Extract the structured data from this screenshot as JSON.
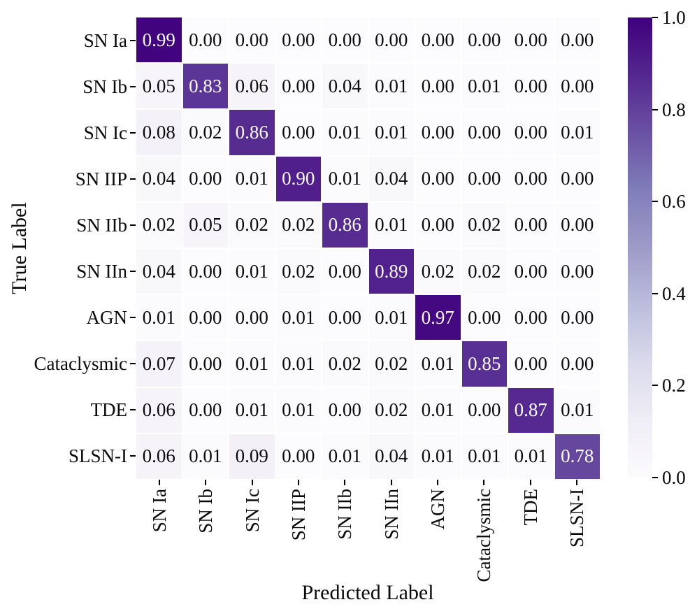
{
  "chart_data": {
    "type": "heatmap",
    "title": "",
    "xlabel": "Predicted Label",
    "ylabel": "True Label",
    "x_categories": [
      "SN Ia",
      "SN Ib",
      "SN Ic",
      "SN IIP",
      "SN IIb",
      "SN IIn",
      "AGN",
      "Cataclysmic",
      "TDE",
      "SLSN-I"
    ],
    "y_categories": [
      "SN Ia",
      "SN Ib",
      "SN Ic",
      "SN IIP",
      "SN IIb",
      "SN IIn",
      "AGN",
      "Cataclysmic",
      "TDE",
      "SLSN-I"
    ],
    "matrix": [
      [
        0.99,
        0.0,
        0.0,
        0.0,
        0.0,
        0.0,
        0.0,
        0.0,
        0.0,
        0.0
      ],
      [
        0.05,
        0.83,
        0.06,
        0.0,
        0.04,
        0.01,
        0.0,
        0.01,
        0.0,
        0.0
      ],
      [
        0.08,
        0.02,
        0.86,
        0.0,
        0.01,
        0.01,
        0.0,
        0.0,
        0.0,
        0.01
      ],
      [
        0.04,
        0.0,
        0.01,
        0.9,
        0.01,
        0.04,
        0.0,
        0.0,
        0.0,
        0.0
      ],
      [
        0.02,
        0.05,
        0.02,
        0.02,
        0.86,
        0.01,
        0.0,
        0.02,
        0.0,
        0.0
      ],
      [
        0.04,
        0.0,
        0.01,
        0.02,
        0.0,
        0.89,
        0.02,
        0.02,
        0.0,
        0.0
      ],
      [
        0.01,
        0.0,
        0.0,
        0.01,
        0.0,
        0.01,
        0.97,
        0.0,
        0.0,
        0.0
      ],
      [
        0.07,
        0.0,
        0.01,
        0.01,
        0.02,
        0.02,
        0.01,
        0.85,
        0.0,
        0.0
      ],
      [
        0.06,
        0.0,
        0.01,
        0.01,
        0.0,
        0.02,
        0.01,
        0.0,
        0.87,
        0.01
      ],
      [
        0.06,
        0.01,
        0.09,
        0.0,
        0.01,
        0.04,
        0.01,
        0.01,
        0.01,
        0.78
      ]
    ],
    "value_decimals": 2,
    "grid": false,
    "colormap": {
      "name": "Purples",
      "anchors": [
        "#fcfbfd",
        "#efedf5",
        "#dadaeb",
        "#bcbddc",
        "#9e9ac8",
        "#807dba",
        "#6a51a3",
        "#54278f",
        "#3f007d"
      ]
    },
    "colorbar": {
      "position": "right",
      "min": 0.0,
      "max": 1.0,
      "tick_values": [
        1.0,
        0.8,
        0.6,
        0.4,
        0.2,
        0.0
      ],
      "tick_labels": [
        "1.0",
        "0.8",
        "0.6",
        "0.4",
        "0.2",
        "0.0"
      ]
    },
    "colors": {
      "cell_text_light": "#ffffff",
      "cell_text_dark": "#0a0a0a",
      "tick_mark": "#000000",
      "background": "#ffffff"
    }
  }
}
